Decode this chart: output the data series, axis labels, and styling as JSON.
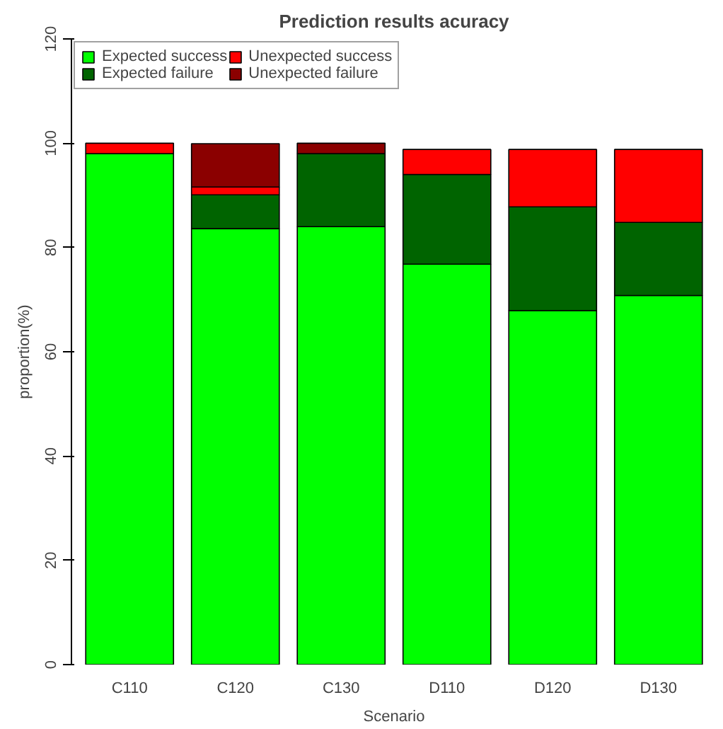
{
  "chart_data": {
    "type": "bar",
    "stacked": true,
    "title": "Prediction results acuracy",
    "xlabel": "Scenario",
    "ylabel": "proportion(%)",
    "categories": [
      "C110",
      "C120",
      "C130",
      "D110",
      "D120",
      "D130"
    ],
    "series": [
      {
        "name": "Expected success",
        "color": "#00ff00",
        "values": [
          98,
          83.6,
          84,
          76.8,
          67.9,
          70.8
        ]
      },
      {
        "name": "Expected failure",
        "color": "#006400",
        "values": [
          null,
          6.5,
          14,
          17.2,
          19.9,
          14
        ]
      },
      {
        "name": "Unexpected success",
        "color": "#ff0000",
        "values": [
          2,
          1.5,
          null,
          4.8,
          11,
          14
        ]
      },
      {
        "name": "Unexpected failure",
        "color": "#8b0000",
        "values": [
          null,
          8.3,
          2,
          null,
          null,
          null
        ]
      }
    ],
    "ylim": [
      0,
      120
    ],
    "yticks": [
      0,
      20,
      40,
      60,
      80,
      100,
      120
    ],
    "grid": false,
    "legend": "top left"
  }
}
